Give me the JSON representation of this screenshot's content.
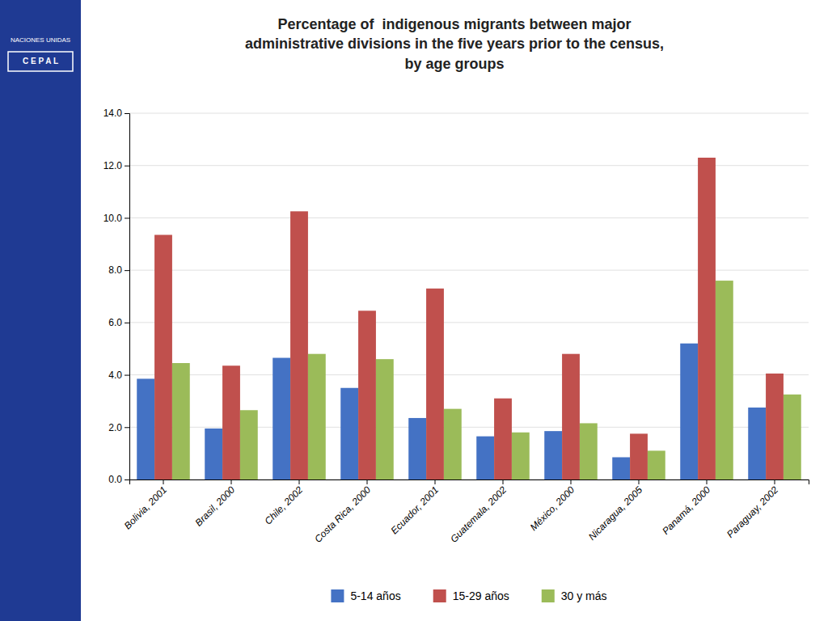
{
  "chart_data": {
    "type": "bar",
    "title": "Percentage of  indigenous migrants between major\nadministrative divisions in the five years prior to the census,\nby age groups",
    "annotations": [
      "NACIONES UNIDAS",
      "C E P A L"
    ],
    "categories": [
      "Bolivia, 2001",
      "Brasil, 2000",
      "Chile, 2002",
      "Costa Rica, 2000",
      "Ecuador, 2001",
      "Guatemala, 2002",
      "México, 2000",
      "Nicaragua, 2005",
      "Panamá, 2000",
      "Paraguay, 2002"
    ],
    "series": [
      {
        "name": "5-14 años",
        "color": "#4472c4",
        "values": [
          3.85,
          1.95,
          4.65,
          3.5,
          2.35,
          1.65,
          1.85,
          0.85,
          5.2,
          2.75
        ]
      },
      {
        "name": "15-29 años",
        "color": "#c0504d",
        "values": [
          9.35,
          4.35,
          10.25,
          6.45,
          7.3,
          3.1,
          4.8,
          1.75,
          12.3,
          4.05
        ]
      },
      {
        "name": "30 y más",
        "color": "#9bbb59",
        "values": [
          4.45,
          2.65,
          4.8,
          4.6,
          2.7,
          1.8,
          2.15,
          1.1,
          7.6,
          3.25
        ]
      }
    ],
    "ylim": [
      0,
      14.0
    ],
    "yticks": [
      {
        "value": 0.0,
        "label": "0.0"
      },
      {
        "value": 2.0,
        "label": "2.0"
      },
      {
        "value": 4.0,
        "label": "4.0"
      },
      {
        "value": 6.0,
        "label": "6.0"
      },
      {
        "value": 8.0,
        "label": "8.0"
      },
      {
        "value": 10.0,
        "label": "10.0"
      },
      {
        "value": 12.0,
        "label": "12.0"
      },
      {
        "value": 14.0,
        "label": "14.0"
      }
    ],
    "grid": true,
    "legend": "bottom"
  }
}
